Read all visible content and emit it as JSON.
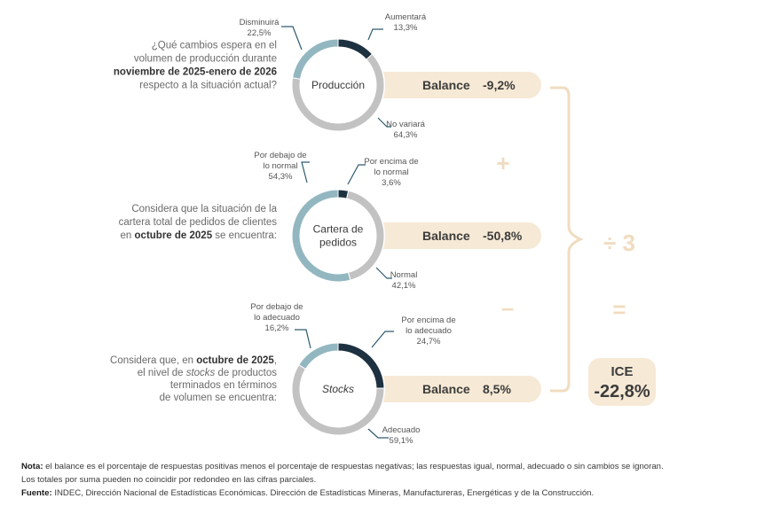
{
  "colors": {
    "aumentara": "#1d3140",
    "disminuira": "#93b7c0",
    "no_variara": "#c2c2c2",
    "balance_bg": "#f6e9d5",
    "operator": "#f0dcc0",
    "brace": "#f0dcc0",
    "ice_bg": "#f6e9d5",
    "leader": "#2e5a6e"
  },
  "chart_data": [
    {
      "type": "pie",
      "name": "Producción",
      "center_label": [
        "Producción"
      ],
      "center_italic": false,
      "question": {
        "lines": [
          [
            {
              "t": "¿Qué cambios espera en el",
              "b": false
            }
          ],
          [
            {
              "t": "volumen de producción durante",
              "b": false
            }
          ],
          [
            {
              "t": "noviembre de 2025-enero de 2026",
              "b": true
            }
          ],
          [
            {
              "t": "respecto a la situación actual?",
              "b": false
            }
          ]
        ]
      },
      "slices": [
        {
          "label": [
            "Aumentará"
          ],
          "value": "13,3%",
          "share": 13.3,
          "color": "#1d3140"
        },
        {
          "label": [
            "No variará"
          ],
          "value": "64,3%",
          "share": 64.3,
          "color": "#c2c2c2"
        },
        {
          "label": [
            "Disminuirá"
          ],
          "value": "22,5%",
          "share": 22.5,
          "color": "#93b7c0"
        }
      ],
      "balance_label": "Balance",
      "balance_value": "-9,2%"
    },
    {
      "type": "pie",
      "name": "Cartera de pedidos",
      "center_label": [
        "Cartera de",
        "pedidos"
      ],
      "center_italic": false,
      "question": {
        "lines": [
          [
            {
              "t": "Considera que la situación de la",
              "b": false
            }
          ],
          [
            {
              "t": "cartera total de pedidos de clientes",
              "b": false
            }
          ],
          [
            {
              "t": "en ",
              "b": false
            },
            {
              "t": "octubre de 2025",
              "b": true
            },
            {
              "t": " se encuentra:",
              "b": false
            }
          ]
        ]
      },
      "slices": [
        {
          "label": [
            "Por encima de",
            "lo normal"
          ],
          "value": "3,6%",
          "share": 3.6,
          "color": "#1d3140"
        },
        {
          "label": [
            "Normal"
          ],
          "value": "42,1%",
          "share": 42.1,
          "color": "#c2c2c2"
        },
        {
          "label": [
            "Por debajo de",
            "lo normal"
          ],
          "value": "54,3%",
          "share": 54.3,
          "color": "#93b7c0"
        }
      ],
      "balance_label": "Balance",
      "balance_value": "-50,8%"
    },
    {
      "type": "pie",
      "name": "Stocks",
      "center_label": [
        "Stocks"
      ],
      "center_italic": true,
      "question": {
        "lines": [
          [
            {
              "t": "Considera que, en ",
              "b": false
            },
            {
              "t": "octubre de 2025",
              "b": true
            },
            {
              "t": ",",
              "b": false
            }
          ],
          [
            {
              "t": "el nivel de ",
              "b": false
            },
            {
              "t": "stocks",
              "b": false,
              "i": true
            },
            {
              "t": " de productos",
              "b": false
            }
          ],
          [
            {
              "t": "terminados en términos",
              "b": false
            }
          ],
          [
            {
              "t": "de volumen se encuentra:",
              "b": false
            }
          ]
        ]
      },
      "slices": [
        {
          "label": [
            "Por encima de",
            "lo adecuado"
          ],
          "value": "24,7%",
          "share": 24.7,
          "color": "#1d3140"
        },
        {
          "label": [
            "Adecuado"
          ],
          "value": "59,1%",
          "share": 59.1,
          "color": "#c2c2c2"
        },
        {
          "label": [
            "Por debajo de",
            "lo adecuado"
          ],
          "value": "16,2%",
          "share": 16.2,
          "color": "#93b7c0"
        }
      ],
      "balance_label": "Balance",
      "balance_value": "8,5%"
    }
  ],
  "operators": {
    "plus": "+",
    "minus": "–",
    "divide": "÷ 3",
    "equals": "="
  },
  "ice": {
    "label": "ICE",
    "value": "-22,8%"
  },
  "notes": {
    "nota_label": "Nota:",
    "nota_text": " el balance es el porcentaje de respuestas positivas menos el porcentaje de respuestas negativas; las respuestas igual, normal, adecuado o sin cambios se ignoran.",
    "totales": "Los totales por suma pueden no coincidir por redondeo en las cifras parciales.",
    "fuente_label": "Fuente:",
    "fuente_text": " INDEC, Dirección Nacional de Estadísticas Económicas. Dirección de Estadísticas Mineras, Manufactureras, Energéticas y de la Construcción."
  }
}
